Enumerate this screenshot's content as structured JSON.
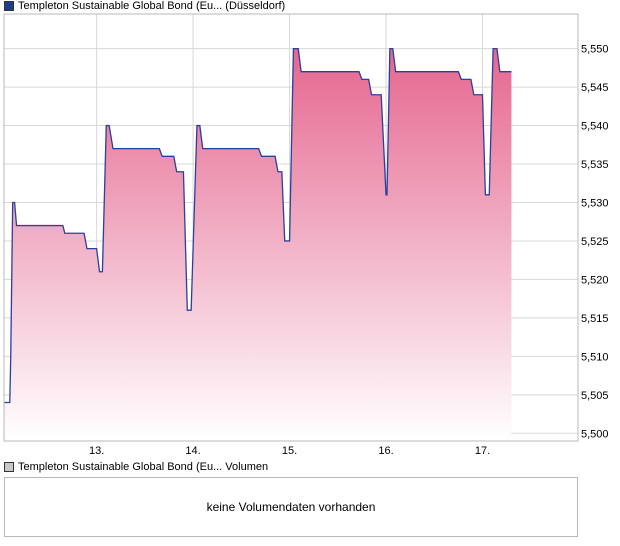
{
  "price_legend": {
    "label": "Templeton Sustainable Global Bond (Eu... (Düsseldorf)",
    "swatch_color": "#1f3c88"
  },
  "volume_legend": {
    "label": "Templeton Sustainable Global Bond (Eu... Volumen",
    "swatch_color": "#c8c8c8"
  },
  "volume_panel": {
    "message": "keine Volumendaten vorhanden"
  },
  "colors": {
    "line": "#2b3f9e",
    "fill_top": "#e5668f",
    "fill_bottom": "#ffffff",
    "grid": "#d8d8d8",
    "border": "#b8b8b8"
  },
  "chart_data": {
    "type": "area",
    "ylim": [
      5.499,
      5.5545
    ],
    "xlim": [
      12.04,
      17.99
    ],
    "y_ticks": [
      5.5,
      5.505,
      5.51,
      5.515,
      5.52,
      5.525,
      5.53,
      5.535,
      5.54,
      5.545,
      5.55
    ],
    "y_tick_labels": [
      "5,500",
      "5,505",
      "5,510",
      "5,515",
      "5,520",
      "5,525",
      "5,530",
      "5,535",
      "5,540",
      "5,545",
      "5,550"
    ],
    "x_ticks": [
      13,
      14,
      15,
      16,
      17
    ],
    "x_tick_labels": [
      "13.",
      "14.",
      "15.",
      "16.",
      "17."
    ],
    "grid": true,
    "series": [
      {
        "values": [
          [
            12.04,
            5.504
          ],
          [
            12.1,
            5.504
          ],
          [
            12.11,
            5.51
          ],
          [
            12.13,
            5.53
          ],
          [
            12.15,
            5.53
          ],
          [
            12.17,
            5.527
          ],
          [
            12.65,
            5.527
          ],
          [
            12.67,
            5.526
          ],
          [
            12.87,
            5.526
          ],
          [
            12.9,
            5.524
          ],
          [
            13.0,
            5.524
          ],
          [
            13.03,
            5.521
          ],
          [
            13.06,
            5.521
          ],
          [
            13.1,
            5.54
          ],
          [
            13.13,
            5.54
          ],
          [
            13.17,
            5.537
          ],
          [
            13.65,
            5.537
          ],
          [
            13.68,
            5.536
          ],
          [
            13.8,
            5.536
          ],
          [
            13.83,
            5.534
          ],
          [
            13.9,
            5.534
          ],
          [
            13.94,
            5.516
          ],
          [
            13.98,
            5.516
          ],
          [
            14.04,
            5.54
          ],
          [
            14.07,
            5.54
          ],
          [
            14.1,
            5.537
          ],
          [
            14.68,
            5.537
          ],
          [
            14.71,
            5.536
          ],
          [
            14.85,
            5.536
          ],
          [
            14.88,
            5.534
          ],
          [
            14.92,
            5.534
          ],
          [
            14.95,
            5.525
          ],
          [
            15.0,
            5.525
          ],
          [
            15.04,
            5.55
          ],
          [
            15.09,
            5.55
          ],
          [
            15.12,
            5.547
          ],
          [
            15.72,
            5.547
          ],
          [
            15.75,
            5.546
          ],
          [
            15.82,
            5.546
          ],
          [
            15.85,
            5.544
          ],
          [
            15.95,
            5.544
          ],
          [
            16.0,
            5.531
          ],
          [
            16.01,
            5.531
          ],
          [
            16.04,
            5.55
          ],
          [
            16.07,
            5.55
          ],
          [
            16.1,
            5.547
          ],
          [
            16.75,
            5.547
          ],
          [
            16.78,
            5.546
          ],
          [
            16.88,
            5.546
          ],
          [
            16.91,
            5.544
          ],
          [
            17.0,
            5.544
          ],
          [
            17.03,
            5.531
          ],
          [
            17.07,
            5.531
          ],
          [
            17.11,
            5.55
          ],
          [
            17.15,
            5.55
          ],
          [
            17.18,
            5.547
          ],
          [
            17.3,
            5.547
          ]
        ]
      }
    ]
  }
}
